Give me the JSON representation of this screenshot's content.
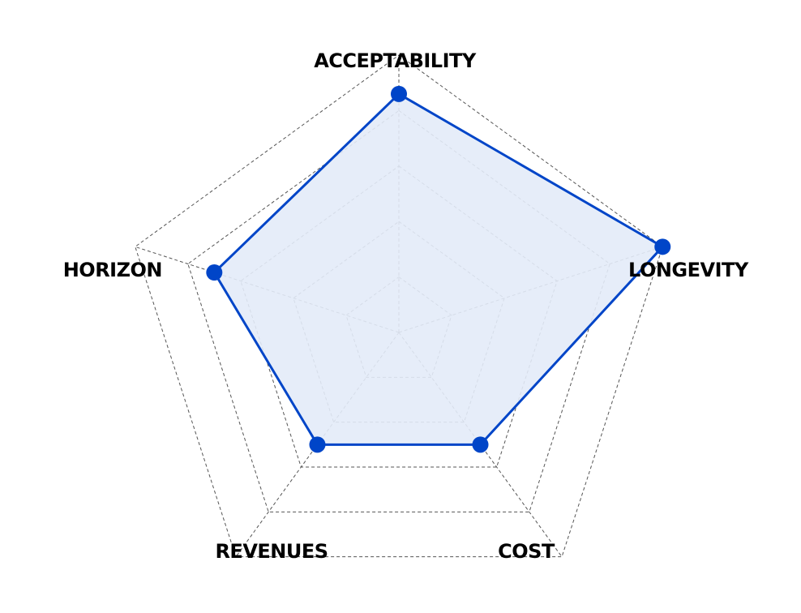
{
  "chart_data": {
    "type": "radar",
    "title": "",
    "axes": [
      "ACCEPTABILITY",
      "LONGEVITY",
      "COST",
      "REVENUES",
      "HORIZON"
    ],
    "range": [
      0,
      100
    ],
    "grid_levels": 5,
    "grid_style": "dashed",
    "series": [
      {
        "name": "",
        "values": [
          86,
          100,
          50,
          50,
          70
        ],
        "color": "#0045c8",
        "fill": "#e3ebf8"
      }
    ]
  },
  "colors": {
    "accent": "#0045c8",
    "fill": "#e3ebf8",
    "grid": "#555555",
    "label": "#000000"
  }
}
